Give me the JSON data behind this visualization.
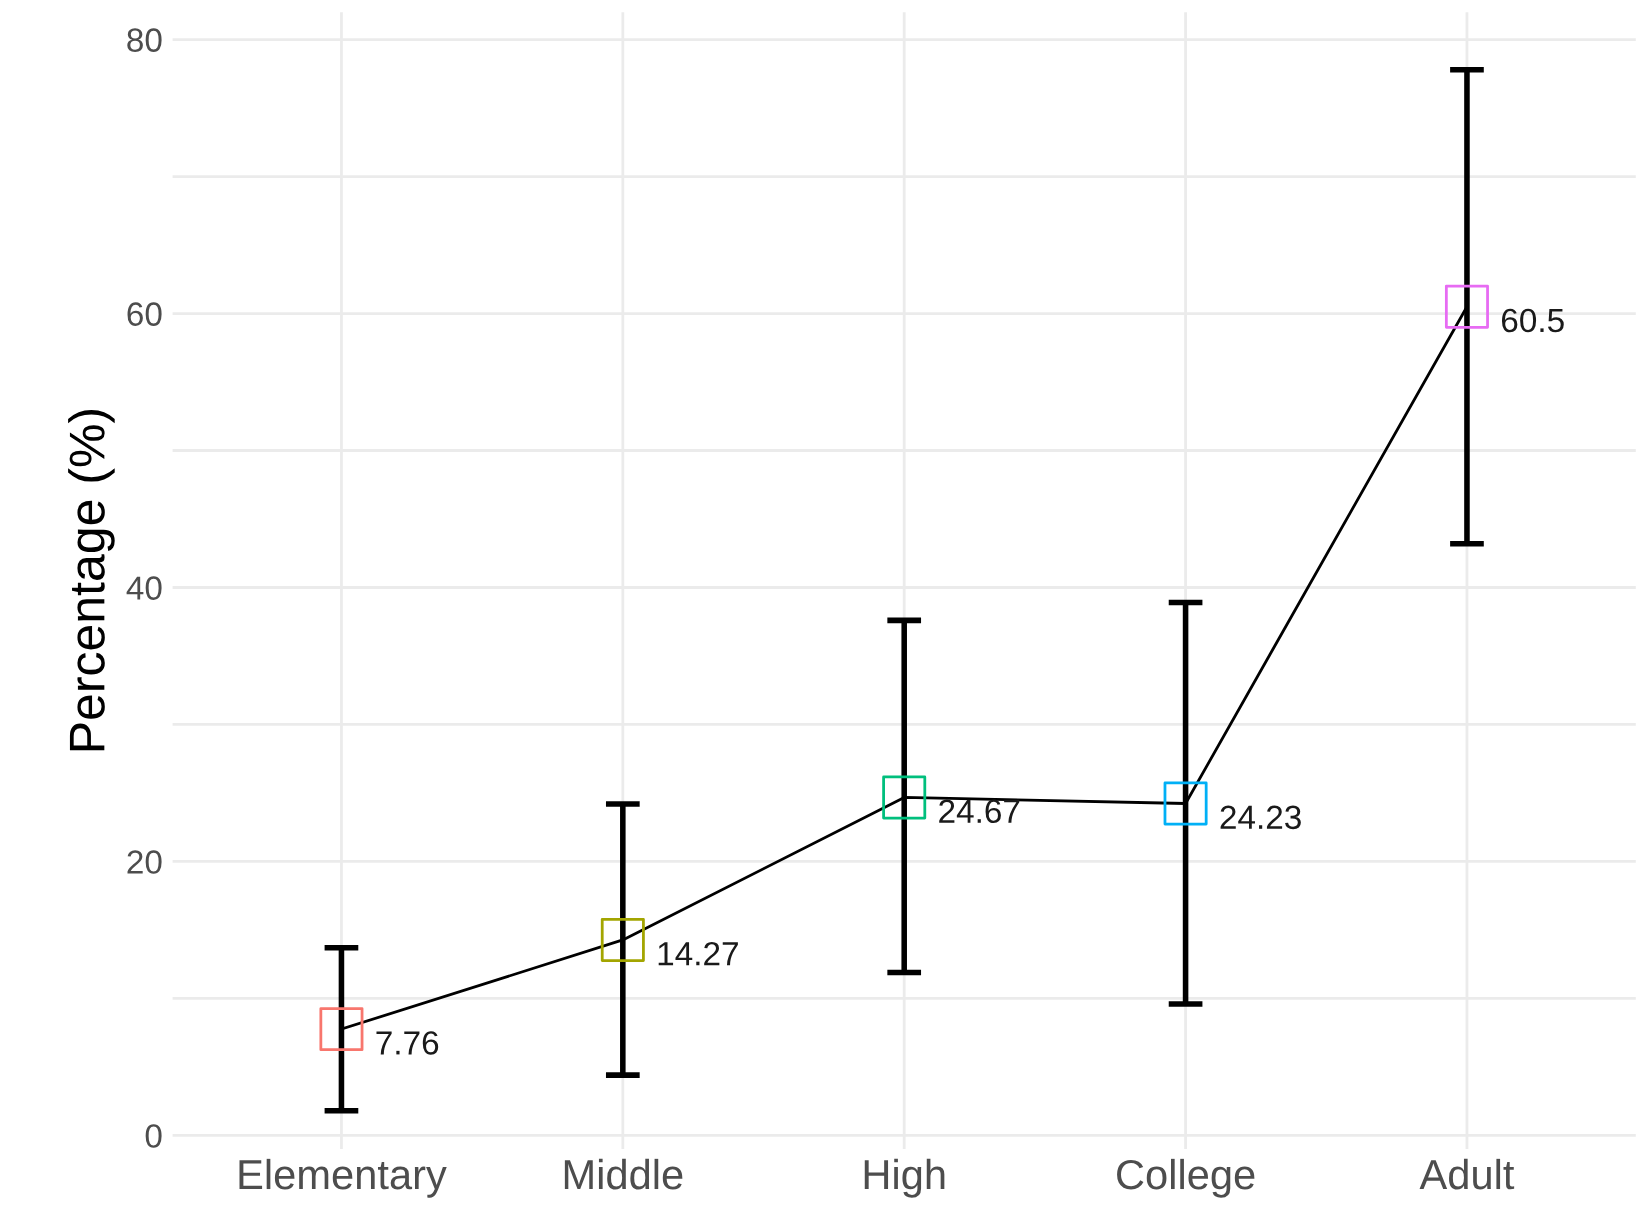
{
  "chart_data": {
    "type": "line",
    "ylabel": "Percentage (%)",
    "categories": [
      "Elementary",
      "Middle",
      "High",
      "College",
      "Adult"
    ],
    "series": [
      {
        "color": "#000000",
        "colors": [
          "#f8766d",
          "#a3a500",
          "#00bf7d",
          "#00b0f6",
          "#e76bf3"
        ],
        "values": [
          7.76,
          14.27,
          24.67,
          24.23,
          60.5
        ],
        "errors": [
          [
            1.8,
            13.7
          ],
          [
            4.4,
            24.2
          ],
          [
            11.9,
            37.6
          ],
          [
            9.6,
            38.9
          ],
          [
            43.2,
            77.8
          ]
        ],
        "value_labels": [
          "7.76",
          "14.27",
          "24.67",
          "24.23",
          "60.5"
        ]
      }
    ],
    "ylim": [
      -1,
      82
    ],
    "yticks": [
      0,
      {
        "value": 10,
        "label": null
      },
      20,
      {
        "value": 30,
        "label": null
      },
      40,
      {
        "value": 50,
        "label": null
      },
      60,
      {
        "value": 70,
        "label": null
      },
      80
    ],
    "grid": true,
    "marker": "square",
    "line_style": "solid"
  }
}
